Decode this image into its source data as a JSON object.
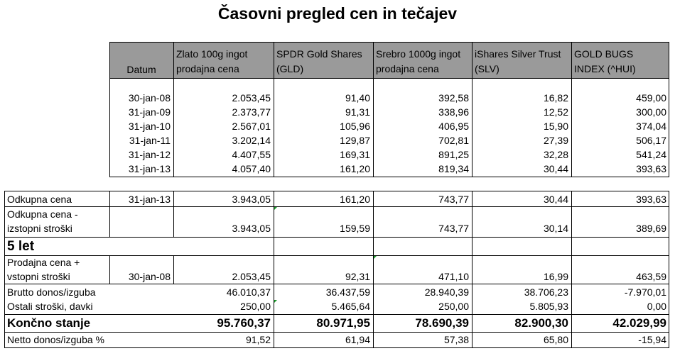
{
  "title": "Časovni pregled cen in tečajev",
  "header": {
    "datum": "Datum",
    "cols": [
      [
        "Zlato 100g ingot",
        "prodajna cena"
      ],
      [
        "SPDR Gold Shares",
        "(GLD)"
      ],
      [
        "Srebro 1000g ingot",
        "prodajna cena"
      ],
      [
        "iShares Silver Trust",
        "(SLV)"
      ],
      [
        "GOLD BUGS",
        "INDEX (^HUI)"
      ]
    ]
  },
  "history": [
    {
      "date": "30-jan-08",
      "values": [
        "2.053,45",
        "91,40",
        "392,58",
        "16,82",
        "459,00"
      ]
    },
    {
      "date": "31-jan-09",
      "values": [
        "2.373,77",
        "91,31",
        "338,96",
        "12,52",
        "300,00"
      ]
    },
    {
      "date": "31-jan-10",
      "values": [
        "2.567,01",
        "105,96",
        "406,95",
        "15,90",
        "374,04"
      ]
    },
    {
      "date": "31-jan-11",
      "values": [
        "3.202,14",
        "129,87",
        "702,81",
        "27,39",
        "506,17"
      ]
    },
    {
      "date": "31-jan-12",
      "values": [
        "4.407,55",
        "169,31",
        "891,25",
        "32,28",
        "541,24"
      ]
    },
    {
      "date": "31-jan-13",
      "values": [
        "4.057,40",
        "161,20",
        "819,34",
        "30,44",
        "393,63"
      ]
    }
  ],
  "odkupna": {
    "label": "Odkupna cena",
    "date": "31-jan-13",
    "values": [
      "3.943,05",
      "161,20",
      "743,77",
      "30,44",
      "393,63"
    ]
  },
  "odkupna_stroski": {
    "label1": "Odkupna cena -",
    "label2": "izstopni stroški",
    "values": [
      "3.943,05",
      "159,59",
      "743,77",
      "30,14",
      "389,69"
    ]
  },
  "section": "5 let",
  "prodajna": {
    "label1": "Prodajna cena +",
    "label2": "vstopni stroški",
    "date": "30-jan-08",
    "values": [
      "2.053,45",
      "92,31",
      "471,10",
      "16,99",
      "463,59"
    ]
  },
  "brutto": {
    "label": "Brutto donos/izguba",
    "values": [
      "46.010,37",
      "36.437,59",
      "28.940,39",
      "38.706,23",
      "-7.970,01"
    ]
  },
  "ostali": {
    "label": "Ostali stroški, davki",
    "values": [
      "250,00",
      "5.465,64",
      "250,00",
      "5.805,93",
      "0,00"
    ]
  },
  "koncno": {
    "label": "Končno stanje",
    "values": [
      "95.760,37",
      "80.971,95",
      "78.690,39",
      "82.900,30",
      "42.029,99"
    ]
  },
  "netto": {
    "label": "Netto donos/izguba %",
    "values": [
      "91,52",
      "61,94",
      "57,38",
      "65,80",
      "-15,94"
    ]
  }
}
